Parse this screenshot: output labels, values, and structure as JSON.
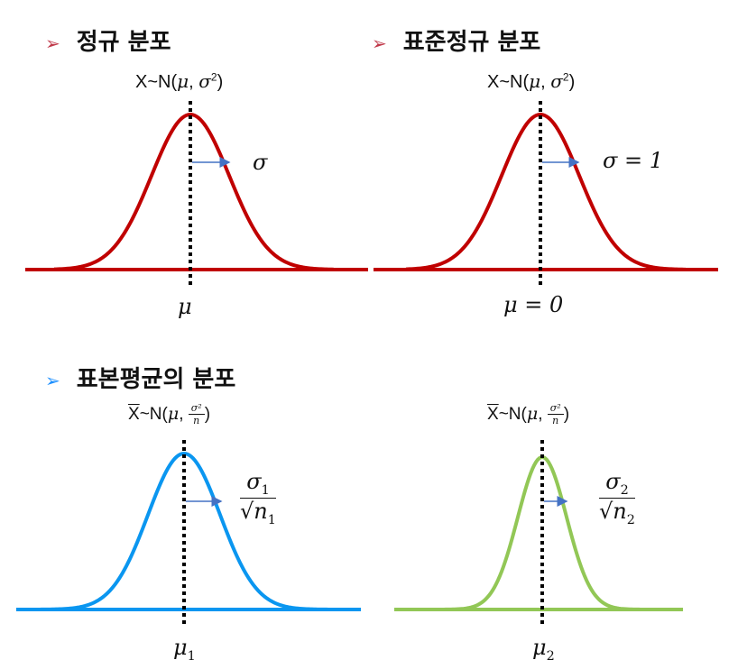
{
  "headings": {
    "normal": "정규 분포",
    "standard_normal": "표준정규 분포",
    "sample_mean": "표본평균의 분포"
  },
  "bullet_glyph": "➢",
  "colors": {
    "arrow_red": "#c0394a",
    "arrow_blue": "#1e90ff",
    "curve_red": "#c00000",
    "curve_blue": "#0a96f0",
    "curve_green": "#92c756",
    "sigma_arrow": "#4472c4"
  },
  "panels": {
    "normal": {
      "dist_label": {
        "prefix": "X~N(",
        "mu": "μ",
        "sep": ", ",
        "sigma": "σ",
        "sup": "2",
        "suffix": ")"
      },
      "sigma_label": "σ",
      "mean_label": "μ"
    },
    "standard_normal": {
      "dist_label": {
        "prefix": "X~N(",
        "mu": "μ",
        "sep": ", ",
        "sigma": "σ",
        "sup": "2",
        "suffix": ")"
      },
      "sigma_label": "σ = 1",
      "mean_label": "μ = 0"
    },
    "sample1": {
      "dist_label": {
        "xbar": "X",
        "tilde": "~N(",
        "mu": "μ",
        "sep": ", ",
        "num": "σ²",
        "den": "n",
        "suffix": ")"
      },
      "sigma_num": {
        "sym": "σ",
        "sub": "1"
      },
      "sigma_den": {
        "root": "√",
        "sym": "n",
        "sub": "1"
      },
      "mean_label": {
        "sym": "μ",
        "sub": "1"
      }
    },
    "sample2": {
      "dist_label": {
        "xbar": "X",
        "tilde": "~N(",
        "mu": "μ",
        "sep": ", ",
        "num": "σ²",
        "den": "n",
        "suffix": ")"
      },
      "sigma_num": {
        "sym": "σ",
        "sub": "2"
      },
      "sigma_den": {
        "root": "√",
        "sym": "n",
        "sub": "2"
      },
      "mean_label": {
        "sym": "μ",
        "sub": "2"
      }
    }
  }
}
